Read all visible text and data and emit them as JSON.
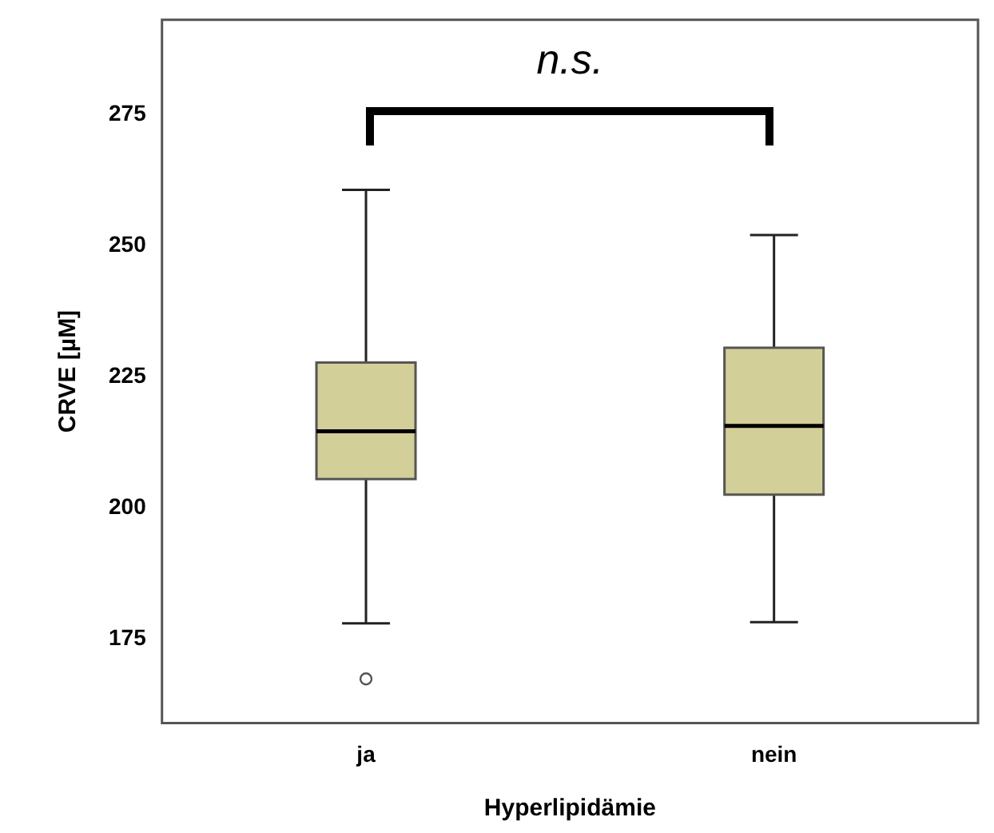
{
  "chart_data": {
    "type": "box",
    "xlabel": "Hyperlipidämie",
    "ylabel": "CRVE [µM]",
    "categories": [
      "ja",
      "nein"
    ],
    "boxes": [
      {
        "low": 178,
        "q1": 205.5,
        "median": 214.6,
        "q3": 227.7,
        "high": 260.6,
        "outliers": [
          167.4
        ]
      },
      {
        "low": 178.2,
        "q1": 202.5,
        "median": 215.6,
        "q3": 230.5,
        "high": 252
      }
    ],
    "color": "#d3cf98",
    "ylim": [
      159,
      293
    ],
    "yticks": [
      175,
      200,
      225,
      250,
      275
    ],
    "grid": false,
    "legend": false,
    "annotations": [
      "n.s."
    ]
  }
}
